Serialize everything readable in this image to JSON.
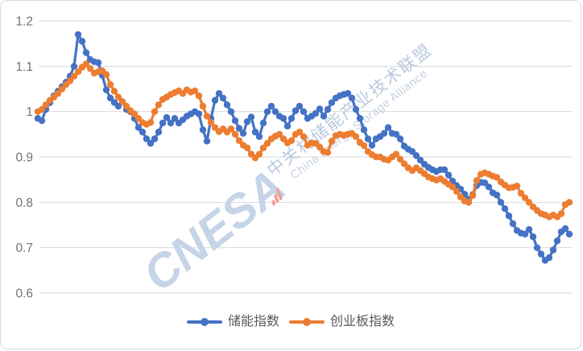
{
  "chart_data": {
    "type": "line",
    "title": "",
    "x_axis_labels": "none",
    "x_count": 133,
    "ylim": [
      0.6,
      1.2
    ],
    "yticks": [
      {
        "label": "1.2",
        "value": 1.2
      },
      {
        "label": "1.1",
        "value": 1.1
      },
      {
        "label": "1",
        "value": 1.0
      },
      {
        "label": "0.9",
        "value": 0.9
      },
      {
        "label": "0.8",
        "value": 0.8
      },
      {
        "label": "0.7",
        "value": 0.7
      },
      {
        "label": "0.6",
        "value": 0.6
      }
    ],
    "grid": "horizontal",
    "legend_position": "bottom",
    "series": [
      {
        "name": "储能指数",
        "color": "#4472C4",
        "values": [
          0.985,
          0.98,
          1.005,
          1.02,
          1.035,
          1.045,
          1.055,
          1.065,
          1.078,
          1.1,
          1.17,
          1.155,
          1.13,
          1.115,
          1.11,
          1.108,
          1.08,
          1.048,
          1.03,
          1.02,
          1.012,
          1.022,
          1.005,
          1.0,
          0.985,
          0.965,
          0.955,
          0.94,
          0.93,
          0.94,
          0.955,
          0.975,
          0.987,
          0.975,
          0.985,
          0.975,
          0.982,
          0.99,
          0.995,
          1.0,
          0.995,
          0.96,
          0.935,
          0.985,
          1.025,
          1.04,
          1.03,
          1.015,
          1.0,
          0.98,
          0.963,
          0.952,
          0.978,
          0.988,
          0.955,
          0.945,
          0.975,
          1.0,
          1.012,
          1.0,
          0.99,
          0.985,
          0.968,
          0.985,
          1.002,
          1.012,
          1.0,
          0.985,
          0.99,
          0.996,
          1.006,
          0.99,
          1.005,
          1.02,
          1.03,
          1.035,
          1.038,
          1.04,
          1.03,
          1.005,
          0.985,
          0.96,
          0.94,
          0.926,
          0.94,
          0.945,
          0.952,
          0.965,
          0.952,
          0.95,
          0.94,
          0.924,
          0.917,
          0.912,
          0.903,
          0.893,
          0.884,
          0.877,
          0.872,
          0.868,
          0.872,
          0.872,
          0.86,
          0.847,
          0.837,
          0.829,
          0.818,
          0.807,
          0.817,
          0.837,
          0.844,
          0.843,
          0.834,
          0.821,
          0.816,
          0.8,
          0.786,
          0.77,
          0.753,
          0.738,
          0.732,
          0.73,
          0.74,
          0.724,
          0.7,
          0.686,
          0.672,
          0.678,
          0.695,
          0.715,
          0.735,
          0.742,
          0.73
        ]
      },
      {
        "name": "创业板指数",
        "color": "#ED7D31",
        "values": [
          1.0,
          1.005,
          1.015,
          1.025,
          1.032,
          1.04,
          1.05,
          1.06,
          1.068,
          1.078,
          1.088,
          1.098,
          1.105,
          1.095,
          1.085,
          1.088,
          1.09,
          1.082,
          1.06,
          1.045,
          1.032,
          1.022,
          1.012,
          1.002,
          0.995,
          0.985,
          0.976,
          0.972,
          0.976,
          1.0,
          1.015,
          1.027,
          1.032,
          1.038,
          1.042,
          1.046,
          1.04,
          1.048,
          1.043,
          1.046,
          1.035,
          1.012,
          0.99,
          0.976,
          0.965,
          0.956,
          0.962,
          0.955,
          0.962,
          0.95,
          0.936,
          0.926,
          0.92,
          0.906,
          0.898,
          0.906,
          0.92,
          0.93,
          0.94,
          0.946,
          0.95,
          0.94,
          0.931,
          0.936,
          0.95,
          0.955,
          0.945,
          0.926,
          0.931,
          0.93,
          0.922,
          0.912,
          0.91,
          0.935,
          0.947,
          0.95,
          0.948,
          0.95,
          0.952,
          0.945,
          0.932,
          0.925,
          0.912,
          0.905,
          0.9,
          0.9,
          0.895,
          0.893,
          0.9,
          0.906,
          0.895,
          0.885,
          0.876,
          0.87,
          0.876,
          0.87,
          0.863,
          0.856,
          0.852,
          0.849,
          0.852,
          0.846,
          0.84,
          0.834,
          0.824,
          0.812,
          0.803,
          0.8,
          0.815,
          0.848,
          0.862,
          0.865,
          0.862,
          0.858,
          0.855,
          0.845,
          0.838,
          0.832,
          0.833,
          0.836,
          0.82,
          0.81,
          0.8,
          0.79,
          0.782,
          0.775,
          0.772,
          0.768,
          0.772,
          0.768,
          0.775,
          0.795,
          0.8
        ]
      }
    ]
  },
  "legend": {
    "items": [
      {
        "label": "储能指数"
      },
      {
        "label": "创业板指数"
      }
    ]
  },
  "watermark": {
    "brand": "CNESA",
    "cn": "中关村储能产业技术联盟",
    "en": "China Energy Storage Alliance"
  },
  "colors": {
    "gridline": "#d9d9d9",
    "axis_label": "#737373",
    "legend_text": "#595959",
    "frame_border": "#d9d9d9",
    "watermark_blue": "#c5d4e7",
    "watermark_icon": "#efa096"
  }
}
